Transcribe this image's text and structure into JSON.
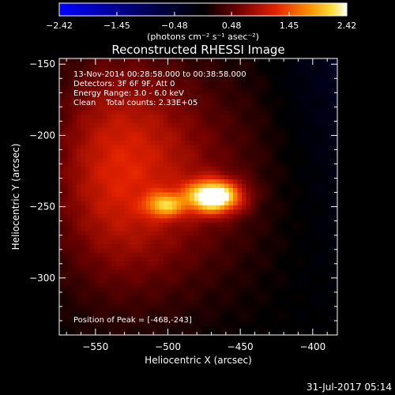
{
  "chart_data": {
    "type": "heatmap",
    "title": "Reconstructed RHESSI Image",
    "xlabel": "Heliocentric X (arcsec)",
    "ylabel": "Heliocentric Y (arcsec)",
    "xlim": [
      -575,
      -383
    ],
    "ylim": [
      -340,
      -146
    ],
    "x_ticks": [
      -550,
      -500,
      -450,
      -400
    ],
    "y_ticks": [
      -150,
      -200,
      -250,
      -300
    ],
    "x_tick_labels": [
      "−550",
      "−500",
      "−450",
      "−400"
    ],
    "y_tick_labels": [
      "−150",
      "−200",
      "−250",
      "−300"
    ],
    "colorbar": {
      "colormap": "RHESSI (blue → black → red → orange → yellow → white)",
      "range": [
        -2.42,
        2.42
      ],
      "ticks": [
        -2.42,
        -1.45,
        -0.48,
        0.48,
        1.45,
        2.42
      ],
      "tick_labels": [
        "−2.42",
        "−1.45",
        "−0.48",
        "0.48",
        "1.45",
        "2.42"
      ],
      "unit_label": "(photons cm⁻² s⁻¹ asec⁻²)"
    },
    "annotations": [
      "13-Nov-2014 00:28:58.000 to 00:38:58.000",
      "Detectors: 3F 6F 9F, Att 0",
      "Energy Range: 3.0 - 6.0 keV",
      "Clean    Total counts: 2.33E+05"
    ],
    "peak_label": "Position of Peak = [-468,-243]",
    "peak_position": [
      -468,
      -243
    ],
    "sources": [
      {
        "x": -468,
        "y": -243,
        "peak": 2.42,
        "sigma_x": 13,
        "sigma_y": 8
      },
      {
        "x": -502,
        "y": -249,
        "peak": 1.2,
        "sigma_x": 9,
        "sigma_y": 6
      },
      {
        "x": -505,
        "y": -230,
        "peak": 0.8,
        "sigma_x": 50,
        "sigma_y": 60
      },
      {
        "x": -540,
        "y": -220,
        "peak": 0.6,
        "sigma_x": 30,
        "sigma_y": 60
      }
    ],
    "background": -0.05,
    "grid": false
  },
  "footer": {
    "date": "31-Jul-2017 05:14"
  }
}
